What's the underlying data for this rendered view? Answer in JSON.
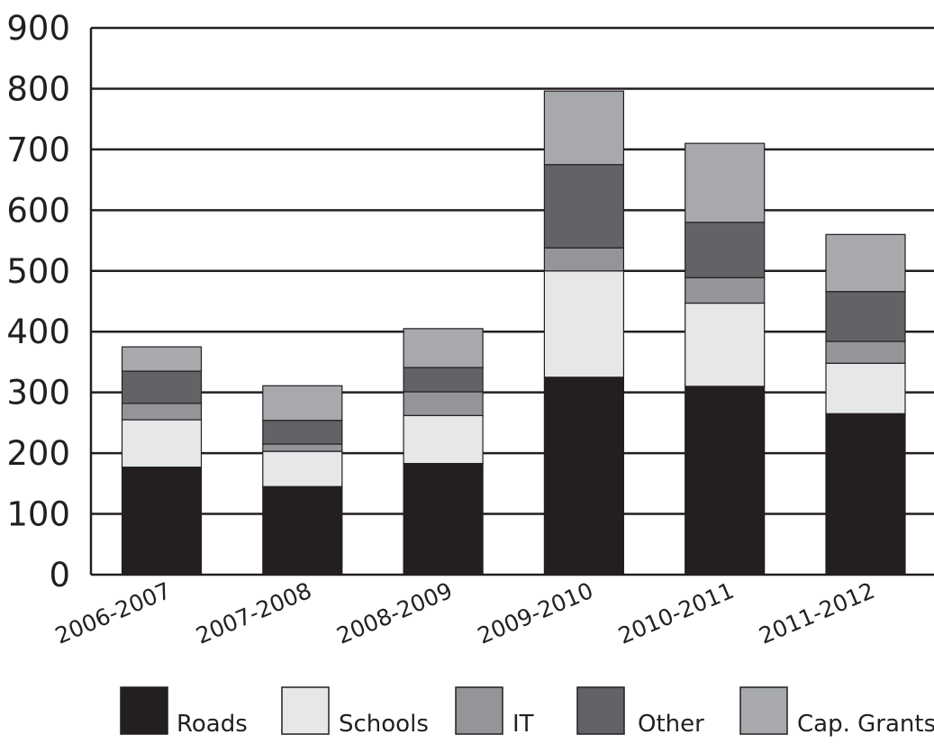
{
  "chart_data": {
    "type": "bar",
    "stacked": true,
    "title": "",
    "xlabel": "",
    "ylabel": "",
    "ylim": [
      0,
      900
    ],
    "yticks": [
      "0",
      "100",
      "200",
      "300",
      "400",
      "500",
      "600",
      "700",
      "800",
      "900"
    ],
    "grid": true,
    "legend_position": "bottom",
    "categories": [
      "2006-2007",
      "2007-2008",
      "2008-2009",
      "2009-2010",
      "2010-2011",
      "2011-2012"
    ],
    "series": [
      {
        "name": "Roads",
        "color": "#231f20",
        "values": [
          177,
          145,
          183,
          325,
          310,
          265
        ]
      },
      {
        "name": "Schools",
        "color": "#e6e7e8",
        "values": [
          78,
          58,
          79,
          175,
          137,
          83
        ]
      },
      {
        "name": "IT",
        "color": "#939598",
        "values": [
          27,
          12,
          39,
          38,
          42,
          36
        ]
      },
      {
        "name": "Other",
        "color": "#626366",
        "values": [
          53,
          39,
          40,
          137,
          91,
          82
        ]
      },
      {
        "name": "Cap. Grants",
        "color": "#a7a9ac",
        "values": [
          40,
          57,
          64,
          121,
          130,
          94
        ]
      }
    ]
  }
}
